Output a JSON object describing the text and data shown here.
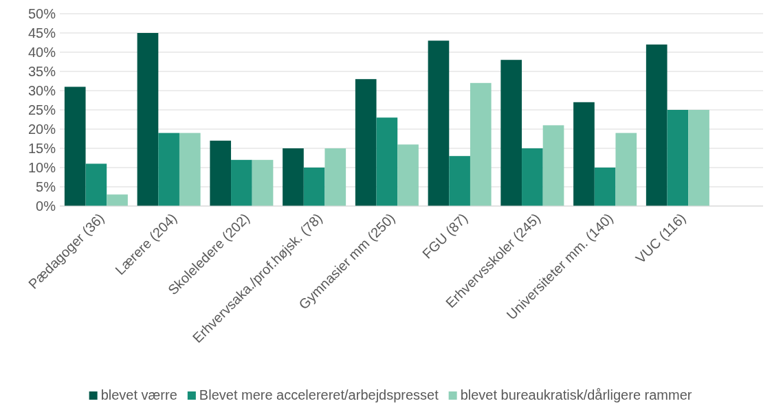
{
  "chart_data": {
    "type": "bar",
    "categories": [
      "Pædagoger (36)",
      "Lærere (204)",
      "Skoleledere (202)",
      "Erhvervsaka./prof.højsk. (78)",
      "Gymnasier mm (250)",
      "FGU (87)",
      "Erhvervsskoler (245)",
      "Universiteter mm. (140)",
      "VUC (116)"
    ],
    "series": [
      {
        "name": "blevet værre",
        "color": "#00584a",
        "values": [
          31,
          45,
          17,
          15,
          33,
          43,
          38,
          27,
          42
        ]
      },
      {
        "name": "Blevet mere accelereret/arbejdspresset",
        "color": "#178f78",
        "values": [
          11,
          19,
          12,
          10,
          23,
          13,
          15,
          10,
          25
        ]
      },
      {
        "name": "blevet bureaukratisk/dårligere rammer",
        "color": "#8fd0b8",
        "values": [
          3,
          19,
          12,
          15,
          16,
          32,
          21,
          19,
          25
        ]
      }
    ],
    "ylim": [
      0,
      50
    ],
    "yticks": [
      {
        "value": 0,
        "label": "0%"
      },
      {
        "value": 5,
        "label": "5%"
      },
      {
        "value": 10,
        "label": "10%"
      },
      {
        "value": 15,
        "label": "15%"
      },
      {
        "value": 20,
        "label": "20%"
      },
      {
        "value": 25,
        "label": "25%"
      },
      {
        "value": 30,
        "label": "30%"
      },
      {
        "value": 35,
        "label": "35%"
      },
      {
        "value": 40,
        "label": "40%"
      },
      {
        "value": 45,
        "label": "45%"
      },
      {
        "value": 50,
        "label": "50%"
      }
    ],
    "grid": "y",
    "legend": "bottom"
  }
}
